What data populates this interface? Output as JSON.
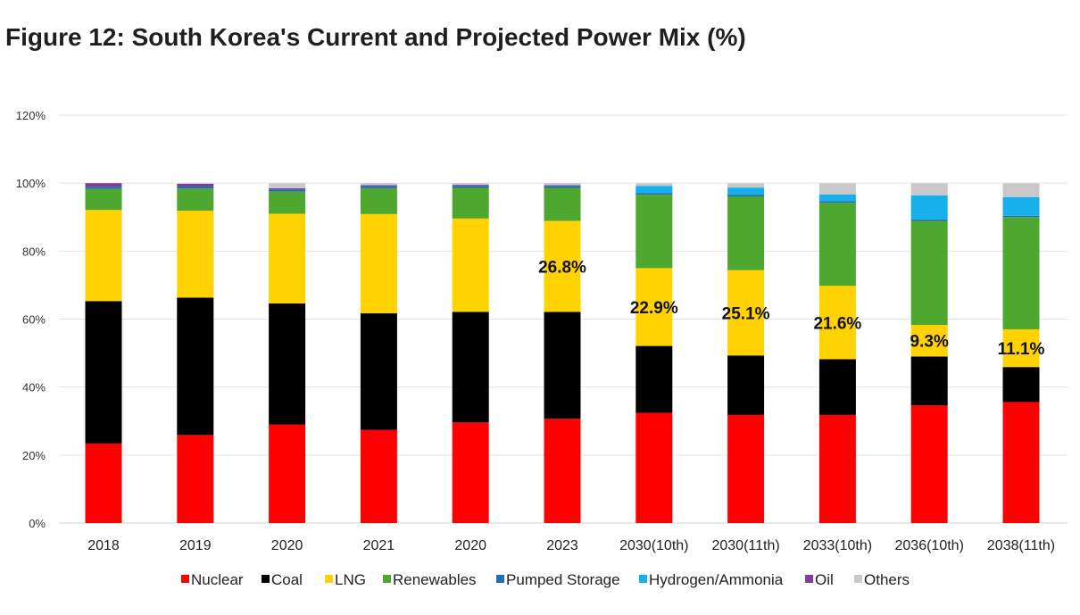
{
  "figure_title": "Figure 12: South Korea's Current and Projected Power Mix (%)",
  "chart_data": {
    "type": "bar",
    "stacked": true,
    "title": "Figure 12: South Korea's Current and Projected Power Mix (%)",
    "xlabel": "",
    "ylabel": "",
    "ylim": [
      0,
      120
    ],
    "yticks": [
      0,
      20,
      40,
      60,
      80,
      100,
      120
    ],
    "ytick_labels": [
      "0%",
      "20%",
      "40%",
      "60%",
      "80%",
      "100%",
      "120%"
    ],
    "grid": true,
    "legend_position": "bottom",
    "categories": [
      "2018",
      "2019",
      "2020",
      "2021",
      "2020",
      "2023",
      "2030(10th)",
      "2030(11th)",
      "2033(10th)",
      "2036(10th)",
      "2038(11th)"
    ],
    "series": [
      {
        "name": "Nuclear",
        "color": "#ff0000",
        "values": [
          23.4,
          25.9,
          29.0,
          27.4,
          29.6,
          30.7,
          32.4,
          31.8,
          31.8,
          34.6,
          35.6
        ]
      },
      {
        "name": "Coal",
        "color": "#000000",
        "values": [
          41.9,
          40.4,
          35.6,
          34.3,
          32.5,
          31.4,
          19.7,
          17.5,
          16.4,
          14.4,
          10.3
        ]
      },
      {
        "name": "LNG",
        "color": "#ffd200",
        "values": [
          26.8,
          25.6,
          26.4,
          29.2,
          27.5,
          26.8,
          22.9,
          25.1,
          21.6,
          9.3,
          11.1
        ]
      },
      {
        "name": "Renewables",
        "color": "#4ea72e",
        "values": [
          6.2,
          6.5,
          6.5,
          7.6,
          9.0,
          9.7,
          21.6,
          21.7,
          24.4,
          30.6,
          33.0
        ]
      },
      {
        "name": "Pumped Storage",
        "color": "#1f6fb4",
        "values": [
          0.6,
          0.6,
          0.6,
          0.6,
          0.6,
          0.6,
          0.5,
          0.5,
          0.5,
          0.4,
          0.4
        ]
      },
      {
        "name": "Hydrogen/Ammonia",
        "color": "#17b0ea",
        "values": [
          0.0,
          0.0,
          0.0,
          0.0,
          0.0,
          0.0,
          2.1,
          2.1,
          2.0,
          7.1,
          5.5
        ]
      },
      {
        "name": "Oil",
        "color": "#7f3f98",
        "values": [
          1.1,
          0.8,
          0.4,
          0.3,
          0.3,
          0.2,
          0.0,
          0.0,
          0.0,
          0.0,
          0.0
        ]
      },
      {
        "name": "Others",
        "color": "#c9c9c9",
        "values": [
          0.0,
          0.2,
          1.5,
          0.6,
          0.5,
          0.6,
          0.8,
          1.3,
          3.3,
          3.6,
          4.1
        ]
      }
    ],
    "annotations": [
      {
        "category_index": 5,
        "series": "LNG",
        "text": "26.8%"
      },
      {
        "category_index": 6,
        "series": "LNG",
        "text": "22.9%"
      },
      {
        "category_index": 7,
        "series": "LNG",
        "text": "25.1%"
      },
      {
        "category_index": 8,
        "series": "LNG",
        "text": "21.6%"
      },
      {
        "category_index": 9,
        "series": "LNG",
        "text": "9.3%"
      },
      {
        "category_index": 10,
        "series": "LNG",
        "text": "11.1%"
      }
    ]
  }
}
